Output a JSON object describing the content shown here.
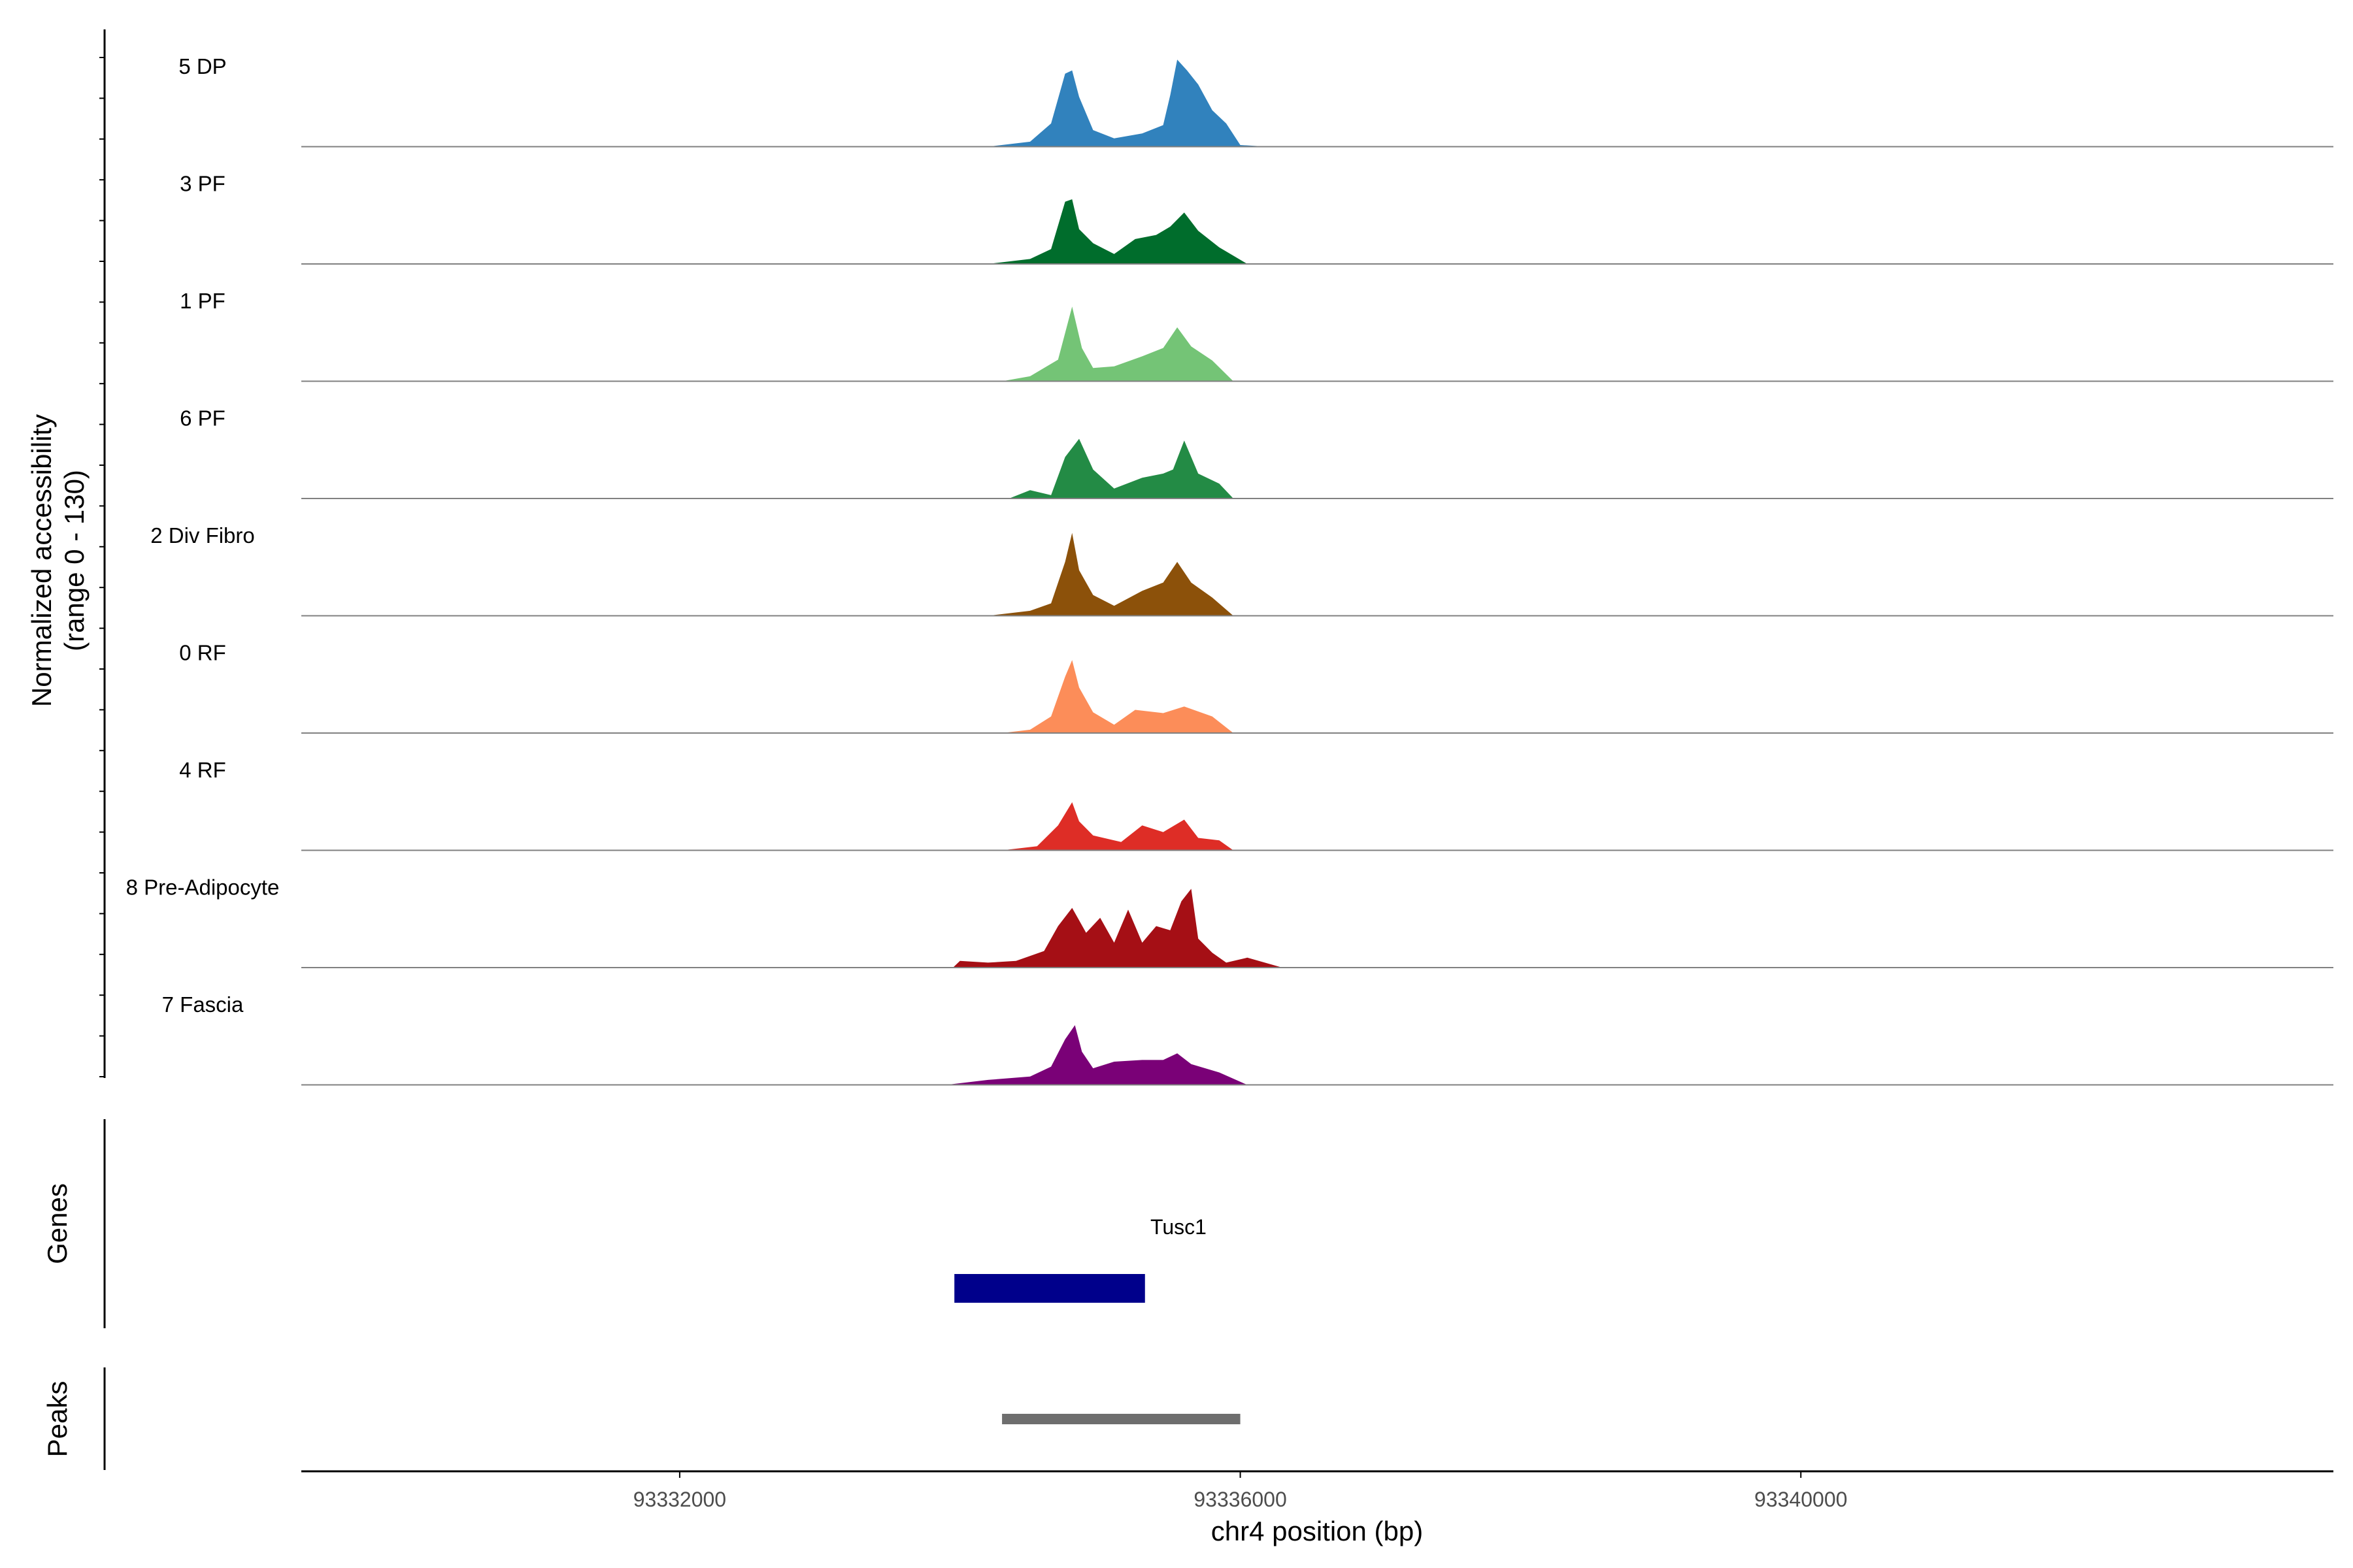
{
  "chart_data": {
    "type": "area",
    "title": "",
    "ylabel_line1": "Normalized accessibility",
    "ylabel_line2": "(range 0 - 130)",
    "ylim": [
      0,
      130
    ],
    "xlabel": "chr4 position (bp)",
    "xlim": [
      93329300,
      93343800
    ],
    "x_ticks": [
      93332000,
      93336000,
      93340000
    ],
    "x_tick_labels": [
      "93332000",
      "93336000",
      "93340000"
    ],
    "tracks": [
      {
        "name": "5 DP",
        "color": "#3182bd",
        "values": [
          [
            93334200,
            0
          ],
          [
            93334500,
            6
          ],
          [
            93334650,
            28
          ],
          [
            93334750,
            88
          ],
          [
            93334800,
            92
          ],
          [
            93334850,
            60
          ],
          [
            93334950,
            20
          ],
          [
            93335100,
            10
          ],
          [
            93335300,
            16
          ],
          [
            93335450,
            26
          ],
          [
            93335500,
            62
          ],
          [
            93335550,
            105
          ],
          [
            93335620,
            92
          ],
          [
            93335700,
            75
          ],
          [
            93335800,
            44
          ],
          [
            93335900,
            28
          ],
          [
            93336000,
            2
          ],
          [
            93336200,
            0
          ]
        ]
      },
      {
        "name": "3 PF",
        "color": "#006d2c",
        "values": [
          [
            93334200,
            0
          ],
          [
            93334500,
            6
          ],
          [
            93334650,
            18
          ],
          [
            93334750,
            75
          ],
          [
            93334800,
            78
          ],
          [
            93334850,
            42
          ],
          [
            93334950,
            25
          ],
          [
            93335100,
            12
          ],
          [
            93335250,
            30
          ],
          [
            93335400,
            35
          ],
          [
            93335500,
            45
          ],
          [
            93335600,
            62
          ],
          [
            93335700,
            40
          ],
          [
            93335850,
            20
          ],
          [
            93336050,
            0
          ]
        ]
      },
      {
        "name": "1 PF",
        "color": "#74c476",
        "values": [
          [
            93334300,
            0
          ],
          [
            93334500,
            6
          ],
          [
            93334700,
            26
          ],
          [
            93334800,
            90
          ],
          [
            93334870,
            40
          ],
          [
            93334950,
            16
          ],
          [
            93335100,
            18
          ],
          [
            93335300,
            30
          ],
          [
            93335450,
            40
          ],
          [
            93335550,
            65
          ],
          [
            93335650,
            42
          ],
          [
            93335800,
            25
          ],
          [
            93335950,
            0
          ]
        ]
      },
      {
        "name": "6 PF",
        "color": "#238b45",
        "values": [
          [
            93334350,
            0
          ],
          [
            93334500,
            10
          ],
          [
            93334650,
            4
          ],
          [
            93334750,
            50
          ],
          [
            93334850,
            72
          ],
          [
            93334950,
            35
          ],
          [
            93335100,
            12
          ],
          [
            93335300,
            25
          ],
          [
            93335450,
            30
          ],
          [
            93335520,
            35
          ],
          [
            93335600,
            70
          ],
          [
            93335700,
            30
          ],
          [
            93335850,
            18
          ],
          [
            93335950,
            0
          ]
        ]
      },
      {
        "name": "2 Div Fibro",
        "color": "#8c510a",
        "values": [
          [
            93334200,
            0
          ],
          [
            93334500,
            6
          ],
          [
            93334650,
            15
          ],
          [
            93334750,
            65
          ],
          [
            93334800,
            100
          ],
          [
            93334850,
            55
          ],
          [
            93334950,
            25
          ],
          [
            93335100,
            12
          ],
          [
            93335300,
            30
          ],
          [
            93335450,
            40
          ],
          [
            93335550,
            65
          ],
          [
            93335650,
            40
          ],
          [
            93335800,
            22
          ],
          [
            93335950,
            0
          ]
        ]
      },
      {
        "name": "0 RF",
        "color": "#fc8d59",
        "values": [
          [
            93334300,
            0
          ],
          [
            93334500,
            4
          ],
          [
            93334650,
            20
          ],
          [
            93334750,
            68
          ],
          [
            93334800,
            88
          ],
          [
            93334850,
            55
          ],
          [
            93334950,
            25
          ],
          [
            93335100,
            10
          ],
          [
            93335250,
            28
          ],
          [
            93335450,
            24
          ],
          [
            93335600,
            32
          ],
          [
            93335800,
            20
          ],
          [
            93335950,
            0
          ]
        ]
      },
      {
        "name": "4 RF",
        "color": "#de2d26",
        "values": [
          [
            93334300,
            0
          ],
          [
            93334550,
            5
          ],
          [
            93334700,
            30
          ],
          [
            93334800,
            58
          ],
          [
            93334850,
            35
          ],
          [
            93334950,
            18
          ],
          [
            93335150,
            10
          ],
          [
            93335300,
            30
          ],
          [
            93335450,
            22
          ],
          [
            93335600,
            37
          ],
          [
            93335700,
            15
          ],
          [
            93335850,
            12
          ],
          [
            93335950,
            0
          ]
        ]
      },
      {
        "name": "8 Pre-Adipocyte",
        "color": "#a50f15",
        "values": [
          [
            93333950,
            0
          ],
          [
            93334000,
            8
          ],
          [
            93334200,
            6
          ],
          [
            93334400,
            8
          ],
          [
            93334600,
            20
          ],
          [
            93334700,
            50
          ],
          [
            93334800,
            72
          ],
          [
            93334900,
            42
          ],
          [
            93335000,
            60
          ],
          [
            93335100,
            30
          ],
          [
            93335200,
            70
          ],
          [
            93335300,
            30
          ],
          [
            93335400,
            50
          ],
          [
            93335500,
            45
          ],
          [
            93335580,
            80
          ],
          [
            93335650,
            95
          ],
          [
            93335700,
            35
          ],
          [
            93335800,
            18
          ],
          [
            93335900,
            6
          ],
          [
            93336050,
            12
          ],
          [
            93336300,
            0
          ]
        ]
      },
      {
        "name": "7 Fascia",
        "color": "#7a0177",
        "values": [
          [
            93333900,
            0
          ],
          [
            93334200,
            6
          ],
          [
            93334500,
            10
          ],
          [
            93334650,
            22
          ],
          [
            93334750,
            55
          ],
          [
            93334820,
            72
          ],
          [
            93334870,
            40
          ],
          [
            93334950,
            20
          ],
          [
            93335100,
            28
          ],
          [
            93335300,
            30
          ],
          [
            93335450,
            30
          ],
          [
            93335550,
            38
          ],
          [
            93335650,
            25
          ],
          [
            93335850,
            15
          ],
          [
            93336050,
            0
          ]
        ]
      }
    ],
    "genes": [
      {
        "name": "Tusc1",
        "start": 93333960,
        "end": 93335320,
        "color": "#00008b"
      }
    ],
    "genes_label": "Genes",
    "peaks": [
      {
        "start": 93334300,
        "end": 93336000,
        "color": "#6e6e6e"
      }
    ],
    "peaks_label": "Peaks"
  }
}
